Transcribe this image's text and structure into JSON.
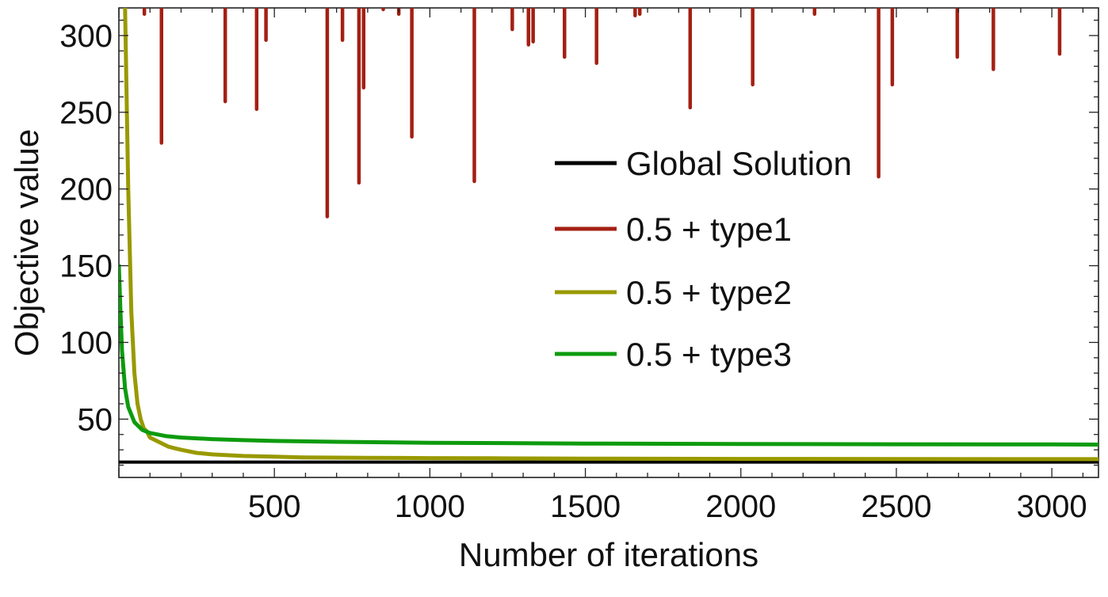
{
  "chart_data": {
    "type": "line",
    "title": "",
    "xlabel": "Number of iterations",
    "ylabel": "Objective value",
    "xlim": [
      0,
      3150
    ],
    "ylim": [
      12,
      318
    ],
    "xticks": [
      500,
      1000,
      1500,
      2000,
      2500,
      3000
    ],
    "yticks": [
      50,
      100,
      150,
      200,
      250,
      300
    ],
    "grid": false,
    "legend_position": "center-right",
    "series": [
      {
        "name": "Global Solution",
        "color": "#000000",
        "x": [
          0,
          3150
        ],
        "y": [
          22,
          22
        ]
      },
      {
        "name": "0.5 + type1",
        "color": "#a32014",
        "style": "spikes",
        "spike_top": 318,
        "x": [
          82,
          137,
          342,
          443,
          473,
          670,
          719,
          772,
          787,
          850,
          900,
          942,
          1143,
          1265,
          1317,
          1332,
          1433,
          1536,
          1660,
          1675,
          1837,
          2038,
          2237,
          2443,
          2487,
          2696,
          2812,
          3025
        ],
        "y": [
          314,
          230,
          257,
          252,
          297,
          182,
          297,
          204,
          266,
          317,
          314,
          234,
          205,
          304,
          294,
          296,
          286,
          282,
          313,
          314,
          253,
          268,
          314,
          208,
          268,
          286,
          278,
          288
        ]
      },
      {
        "name": "0.5 + type2",
        "color": "#999900",
        "x": [
          20,
          30,
          40,
          50,
          60,
          70,
          80,
          90,
          100,
          120,
          140,
          160,
          180,
          200,
          250,
          300,
          400,
          500,
          600,
          800,
          1000,
          1200,
          1500,
          2000,
          2500,
          3000,
          3150
        ],
        "y": [
          318,
          200,
          120,
          80,
          60,
          50,
          44,
          42,
          38,
          36,
          34,
          32,
          31,
          30,
          28,
          27,
          26,
          25.5,
          25,
          24.8,
          24.6,
          24.5,
          24.3,
          24.1,
          24,
          23.9,
          23.9
        ]
      },
      {
        "name": "0.5 + type3",
        "color": "#0e9b0e",
        "x": [
          0,
          5,
          10,
          20,
          30,
          50,
          75,
          100,
          150,
          200,
          300,
          400,
          500,
          700,
          1000,
          1500,
          2000,
          2500,
          3000,
          3150
        ],
        "y": [
          150,
          120,
          95,
          70,
          58,
          48,
          43,
          41,
          39,
          38,
          37,
          36.3,
          35.8,
          35.2,
          34.6,
          34.1,
          33.8,
          33.6,
          33.5,
          33.4
        ]
      }
    ]
  }
}
